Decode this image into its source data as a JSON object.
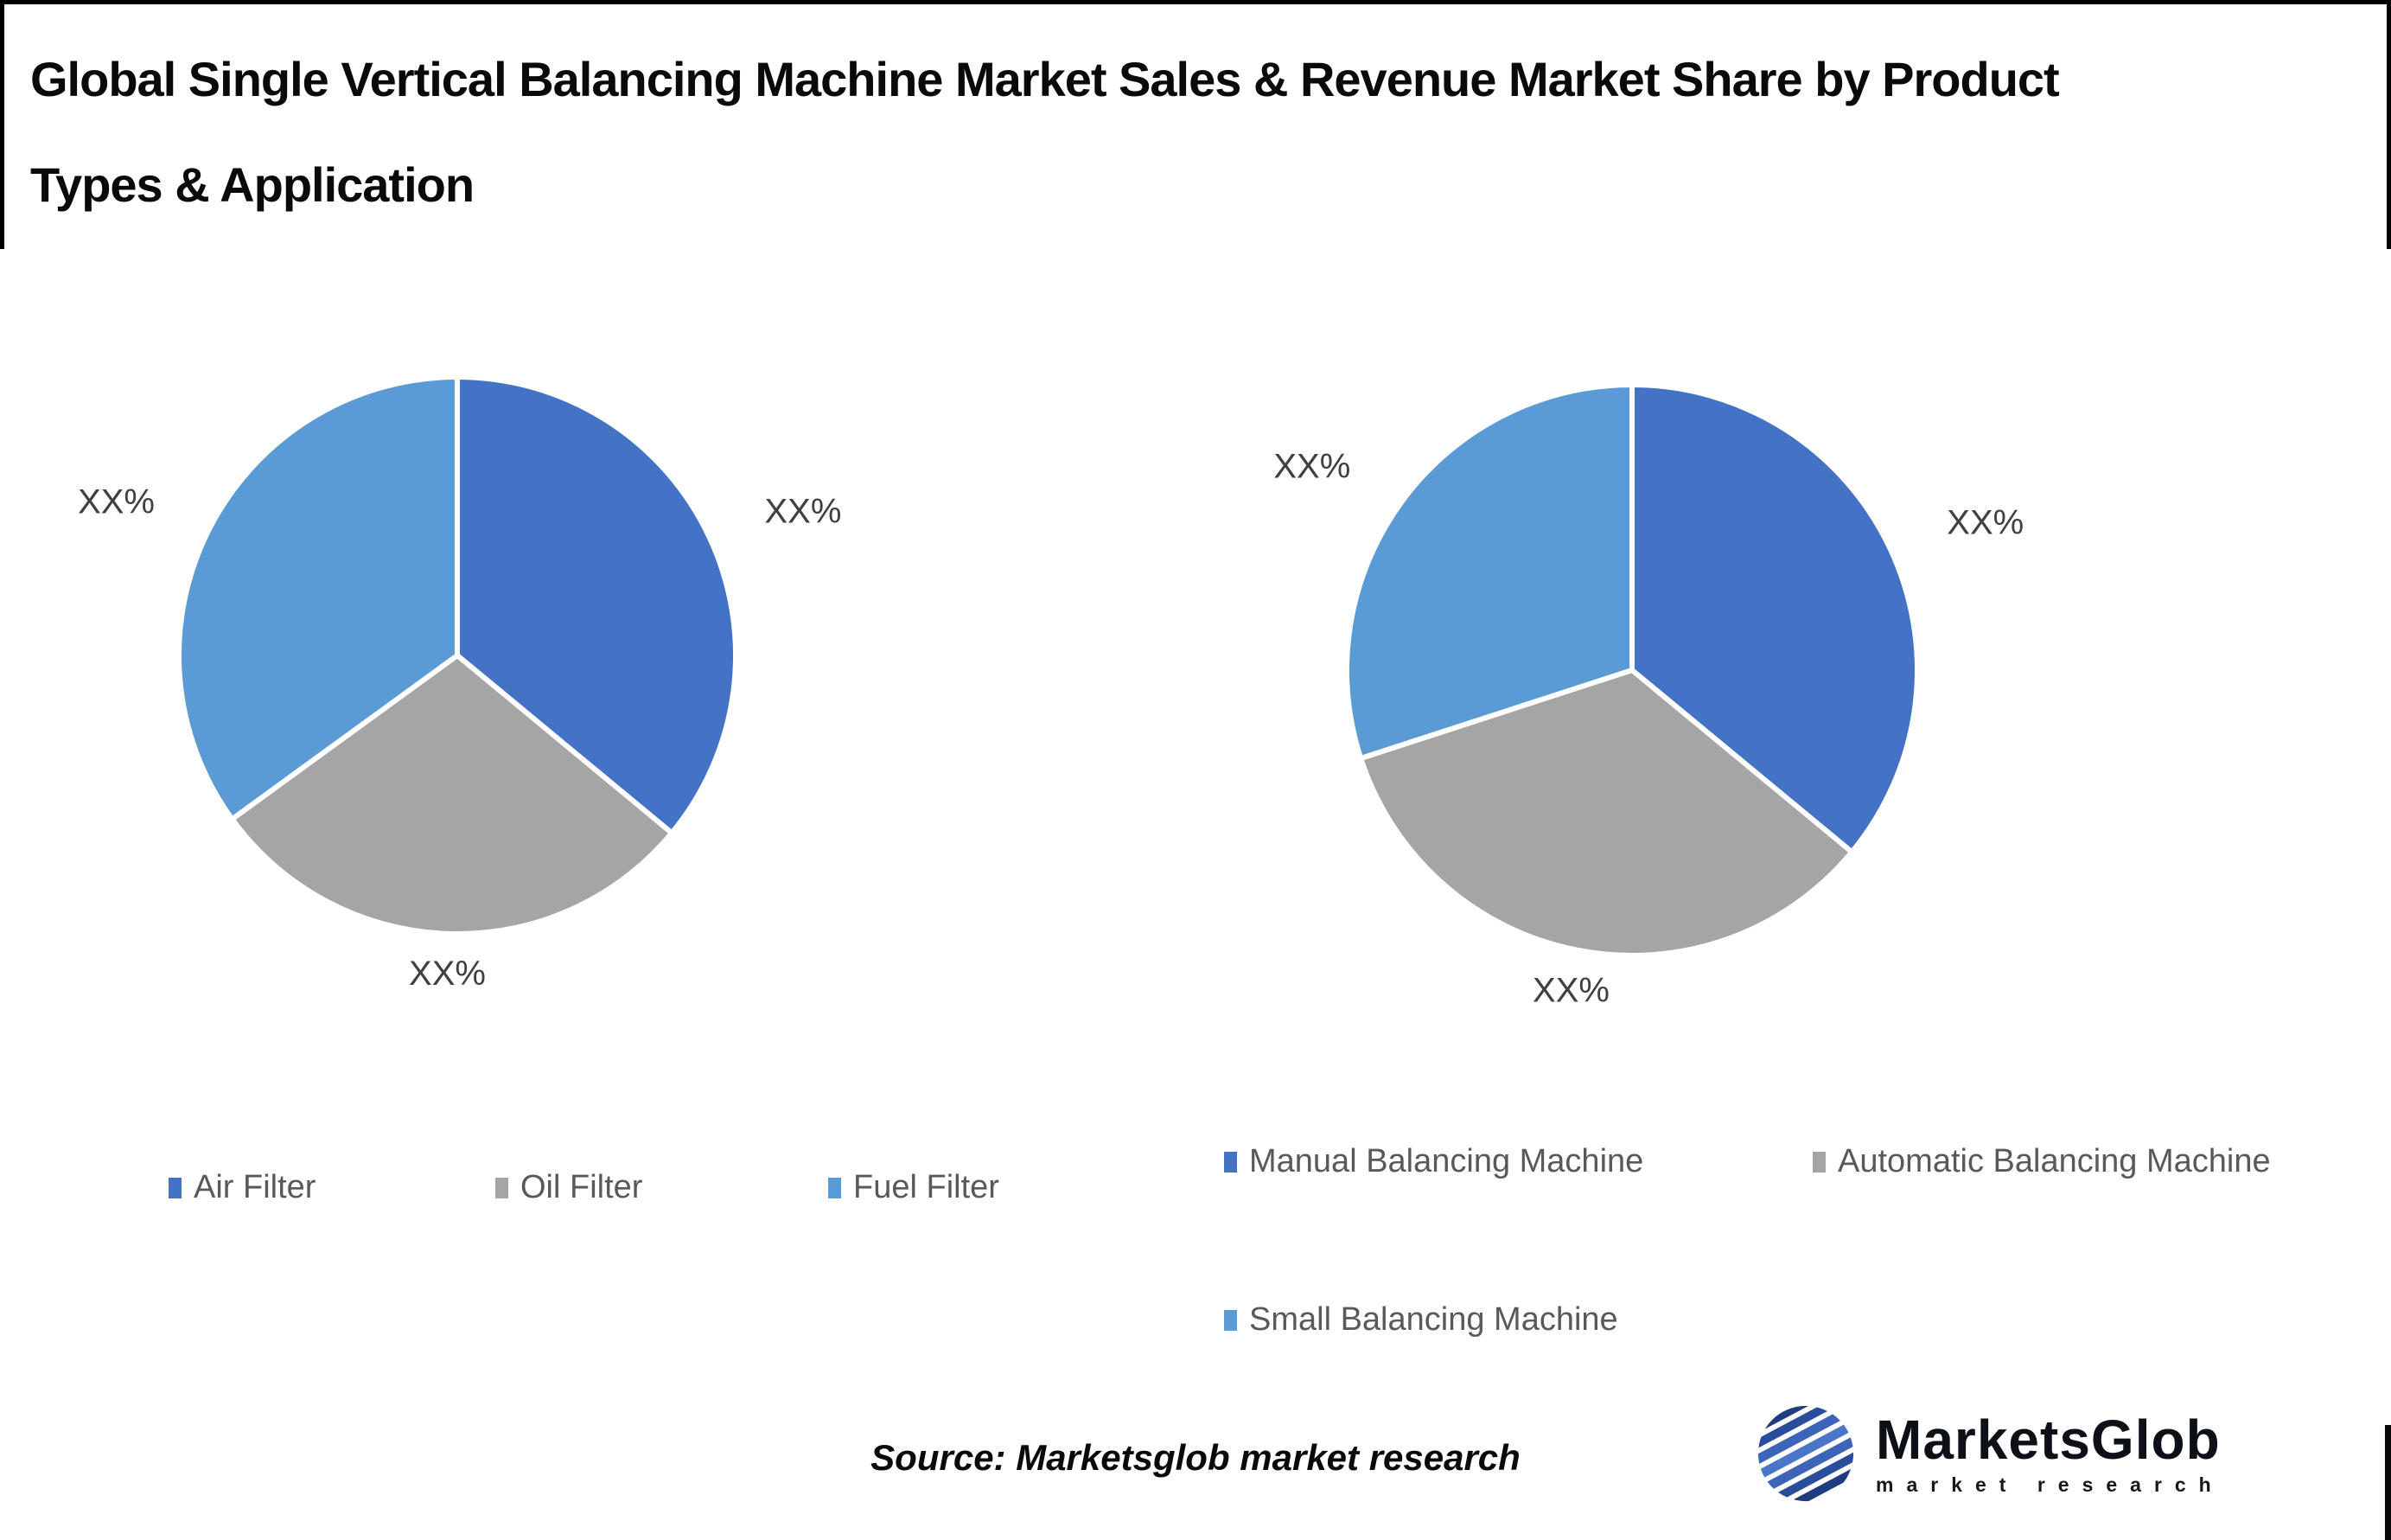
{
  "title": {
    "line1": "Global Single Vertical Balancing Machine Market Sales & Revenue Market Share by Product",
    "line2": "Types & Application",
    "full": "Global Single Vertical Balancing Machine Market Sales & Revenue Market Share by Product Types & Application"
  },
  "source_note": "Source: Marketsglob market research",
  "logo": {
    "name": "MarketsGlob",
    "subtitle": "market research"
  },
  "colors": {
    "series": [
      "#4472C4",
      "#A5A5A5",
      "#5B9BD5"
    ],
    "slice_label_text": "#404040",
    "legend_text": "#595959",
    "border": "#000000"
  },
  "chart_data": [
    {
      "type": "pie",
      "name": "sales-market-share-by-product-type",
      "categories": [
        "Air Filter",
        "Oil Filter",
        "Fuel Filter"
      ],
      "values": [
        36,
        29,
        35
      ],
      "slice_labels": [
        "XX%",
        "XX%",
        "XX%"
      ],
      "legend_position": "bottom",
      "start_angle_deg": 0,
      "direction": "clockwise"
    },
    {
      "type": "pie",
      "name": "revenue-market-share-by-application",
      "categories": [
        "Manual Balancing Machine",
        "Automatic Balancing Machine",
        "Small Balancing Machine"
      ],
      "values": [
        36,
        34,
        30
      ],
      "slice_labels": [
        "XX%",
        "XX%",
        "XX%"
      ],
      "legend_position": "bottom",
      "start_angle_deg": 0,
      "direction": "clockwise"
    }
  ]
}
